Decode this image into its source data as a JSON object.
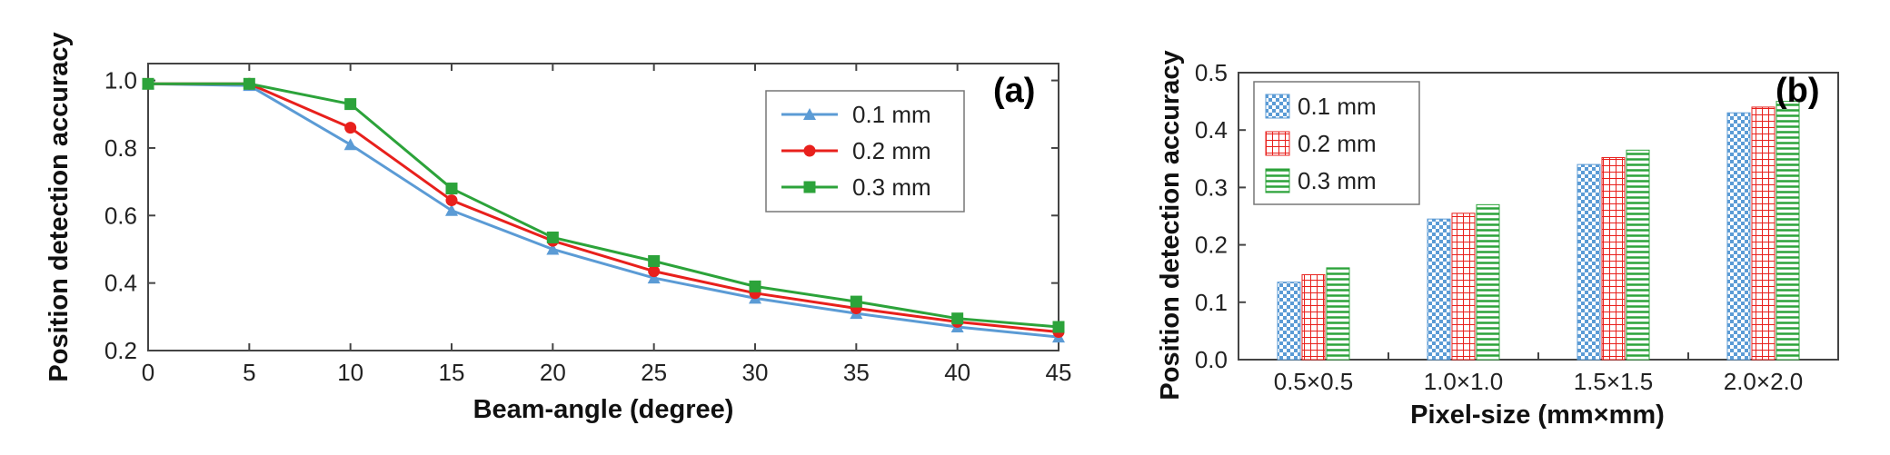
{
  "chart_data": [
    {
      "type": "line",
      "panel_label": "(a)",
      "title": "",
      "xlabel": "Beam-angle (degree)",
      "ylabel": "Position detection accuracy",
      "x": [
        0,
        5,
        10,
        15,
        20,
        25,
        30,
        35,
        40,
        45
      ],
      "xlim": [
        0,
        45
      ],
      "ylim": [
        0.2,
        1.05
      ],
      "xticks": [
        "0",
        "5",
        "10",
        "15",
        "20",
        "25",
        "30",
        "35",
        "40",
        "45"
      ],
      "yticks": [
        "0.2",
        "0.4",
        "0.6",
        "0.8",
        "1.0"
      ],
      "xtick_values": [
        0,
        5,
        10,
        15,
        20,
        25,
        30,
        35,
        40,
        45
      ],
      "ytick_values": [
        0.2,
        0.4,
        0.6,
        0.8,
        1.0
      ],
      "legend_position": "top-right",
      "series": [
        {
          "name": "0.1 mm",
          "marker": "triangle",
          "color": "#5b9bd5",
          "values": [
            0.99,
            0.985,
            0.81,
            0.615,
            0.5,
            0.415,
            0.355,
            0.31,
            0.27,
            0.24
          ]
        },
        {
          "name": "0.2 mm",
          "marker": "circle",
          "color": "#e8201c",
          "values": [
            0.99,
            0.99,
            0.86,
            0.645,
            0.525,
            0.435,
            0.37,
            0.325,
            0.285,
            0.255
          ]
        },
        {
          "name": "0.3 mm",
          "marker": "square",
          "color": "#2ca33a",
          "values": [
            0.99,
            0.99,
            0.93,
            0.68,
            0.535,
            0.465,
            0.39,
            0.345,
            0.295,
            0.27
          ]
        }
      ]
    },
    {
      "type": "bar",
      "panel_label": "(b)",
      "title": "",
      "xlabel": "Pixel-size (mm×mm)",
      "ylabel": "Position detection accuracy",
      "categories": [
        "0.5×0.5",
        "1.0×1.0",
        "1.5×1.5",
        "2.0×2.0"
      ],
      "ylim": [
        0,
        0.5
      ],
      "yticks": [
        "0.0",
        "0.1",
        "0.2",
        "0.3",
        "0.4",
        "0.5"
      ],
      "ytick_values": [
        0,
        0.1,
        0.2,
        0.3,
        0.4,
        0.5
      ],
      "legend_position": "top-left",
      "series": [
        {
          "name": "0.1 mm",
          "pattern": "checker",
          "color": "#5b9bd5",
          "values": [
            0.135,
            0.245,
            0.34,
            0.43
          ]
        },
        {
          "name": "0.2 mm",
          "pattern": "grid",
          "color": "#e8201c",
          "values": [
            0.148,
            0.255,
            0.352,
            0.44
          ]
        },
        {
          "name": "0.3 mm",
          "pattern": "horizontal",
          "color": "#2ca33a",
          "values": [
            0.16,
            0.27,
            0.365,
            0.45
          ]
        }
      ]
    }
  ]
}
